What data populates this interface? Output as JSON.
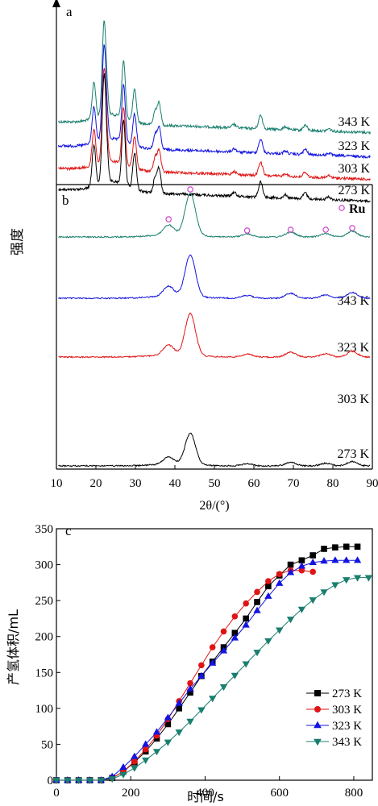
{
  "ylabel_xrd": "强度",
  "chart_data": [
    {
      "panel": "a",
      "type": "line",
      "x_range": [
        10,
        90
      ],
      "series": [
        {
          "name": "343 K",
          "color": "#1a7f6e"
        },
        {
          "name": "323 K",
          "color": "#1414e0"
        },
        {
          "name": "303 K",
          "color": "#e01414"
        },
        {
          "name": "273 K",
          "color": "#000000"
        }
      ],
      "peaks": [
        [
          19.5,
          3.2
        ],
        [
          22.0,
          7.2
        ],
        [
          22.6,
          2.5
        ],
        [
          27.0,
          5.0
        ],
        [
          29.8,
          2.8
        ],
        [
          36.0,
          1.9
        ],
        [
          35.0,
          1.2
        ],
        [
          61.7,
          1.2
        ],
        [
          73.0,
          0.45
        ],
        [
          55.0,
          0.3
        ],
        [
          68.0,
          0.25
        ],
        [
          79.0,
          0.2
        ]
      ]
    },
    {
      "panel": "b",
      "type": "line",
      "x_range": [
        10,
        90
      ],
      "series": [
        {
          "name": "343 K",
          "color": "#1a7f6e"
        },
        {
          "name": "323 K",
          "color": "#1414e0"
        },
        {
          "name": "303 K",
          "color": "#e01414"
        },
        {
          "name": "273 K",
          "color": "#000000"
        }
      ],
      "peaks": [
        [
          38.4,
          1.0
        ],
        [
          43.9,
          4.3
        ],
        [
          58.3,
          0.3
        ],
        [
          69.3,
          0.5
        ],
        [
          78.2,
          0.35
        ],
        [
          84.9,
          0.6
        ]
      ],
      "marker_label": "Ru",
      "markers_x": [
        38.4,
        43.9,
        58.3,
        69.3,
        78.2,
        84.9
      ]
    },
    {
      "panel": "c",
      "type": "line",
      "xlabel": "时间/s",
      "ylabel": "产氢体积/mL",
      "x_range": [
        0,
        850
      ],
      "y_range": [
        0,
        350
      ],
      "x_ticks": [
        0,
        200,
        400,
        600,
        800
      ],
      "y_ticks": [
        0,
        50,
        100,
        150,
        200,
        250,
        300,
        350
      ],
      "legend_position": "bottom-right",
      "series": [
        {
          "name": "273 K",
          "color": "#000000",
          "marker": "square",
          "points": [
            [
              0,
              0
            ],
            [
              30,
              0
            ],
            [
              60,
              0
            ],
            [
              90,
              0
            ],
            [
              120,
              0
            ],
            [
              150,
              3
            ],
            [
              180,
              12
            ],
            [
              210,
              25
            ],
            [
              240,
              40
            ],
            [
              270,
              58
            ],
            [
              300,
              78
            ],
            [
              330,
              100
            ],
            [
              360,
              122
            ],
            [
              390,
              145
            ],
            [
              420,
              165
            ],
            [
              450,
              185
            ],
            [
              480,
              205
            ],
            [
              510,
              225
            ],
            [
              540,
              248
            ],
            [
              570,
              270
            ],
            [
              600,
              285
            ],
            [
              630,
              300
            ],
            [
              660,
              306
            ],
            [
              690,
              313
            ],
            [
              720,
              322
            ],
            [
              750,
              324
            ],
            [
              780,
              325
            ],
            [
              810,
              325
            ]
          ]
        },
        {
          "name": "303 K",
          "color": "#e01414",
          "marker": "circle",
          "points": [
            [
              0,
              0
            ],
            [
              30,
              0
            ],
            [
              60,
              0
            ],
            [
              90,
              0
            ],
            [
              120,
              0
            ],
            [
              150,
              3
            ],
            [
              180,
              12
            ],
            [
              210,
              26
            ],
            [
              240,
              43
            ],
            [
              270,
              62
            ],
            [
              300,
              85
            ],
            [
              330,
              110
            ],
            [
              360,
              135
            ],
            [
              390,
              160
            ],
            [
              420,
              185
            ],
            [
              450,
              207
            ],
            [
              480,
              228
            ],
            [
              510,
              246
            ],
            [
              540,
              262
            ],
            [
              570,
              277
            ],
            [
              600,
              287
            ],
            [
              630,
              292
            ],
            [
              660,
              292
            ],
            [
              690,
              290
            ]
          ]
        },
        {
          "name": "323 K",
          "color": "#1414e0",
          "marker": "triangle-up",
          "points": [
            [
              0,
              0
            ],
            [
              30,
              0
            ],
            [
              60,
              0
            ],
            [
              90,
              0
            ],
            [
              120,
              0
            ],
            [
              150,
              5
            ],
            [
              180,
              18
            ],
            [
              210,
              33
            ],
            [
              240,
              50
            ],
            [
              270,
              67
            ],
            [
              300,
              87
            ],
            [
              330,
              107
            ],
            [
              360,
              127
            ],
            [
              390,
              145
            ],
            [
              420,
              163
            ],
            [
              450,
              180
            ],
            [
              480,
              198
            ],
            [
              510,
              216
            ],
            [
              540,
              236
            ],
            [
              570,
              256
            ],
            [
              600,
              274
            ],
            [
              630,
              289
            ],
            [
              660,
              298
            ],
            [
              690,
              303
            ],
            [
              720,
              305
            ],
            [
              750,
              306
            ],
            [
              780,
              306
            ],
            [
              810,
              306
            ]
          ]
        },
        {
          "name": "343 K",
          "color": "#1a7f6e",
          "marker": "triangle-down",
          "points": [
            [
              0,
              0
            ],
            [
              30,
              0
            ],
            [
              60,
              0
            ],
            [
              90,
              0
            ],
            [
              120,
              0
            ],
            [
              150,
              2
            ],
            [
              180,
              8
            ],
            [
              210,
              17
            ],
            [
              240,
              28
            ],
            [
              270,
              40
            ],
            [
              300,
              53
            ],
            [
              330,
              67
            ],
            [
              360,
              82
            ],
            [
              390,
              98
            ],
            [
              420,
              114
            ],
            [
              450,
              130
            ],
            [
              480,
              146
            ],
            [
              510,
              162
            ],
            [
              540,
              178
            ],
            [
              570,
              194
            ],
            [
              600,
              209
            ],
            [
              630,
              224
            ],
            [
              660,
              238
            ],
            [
              690,
              251
            ],
            [
              720,
              262
            ],
            [
              750,
              272
            ],
            [
              780,
              279
            ],
            [
              810,
              282
            ],
            [
              840,
              282
            ]
          ]
        }
      ]
    }
  ],
  "axis_b": {
    "xlabel": "2θ/(°)",
    "x_ticks": [
      "10",
      "20",
      "30",
      "40",
      "50",
      "60",
      "70",
      "80",
      "90"
    ]
  }
}
